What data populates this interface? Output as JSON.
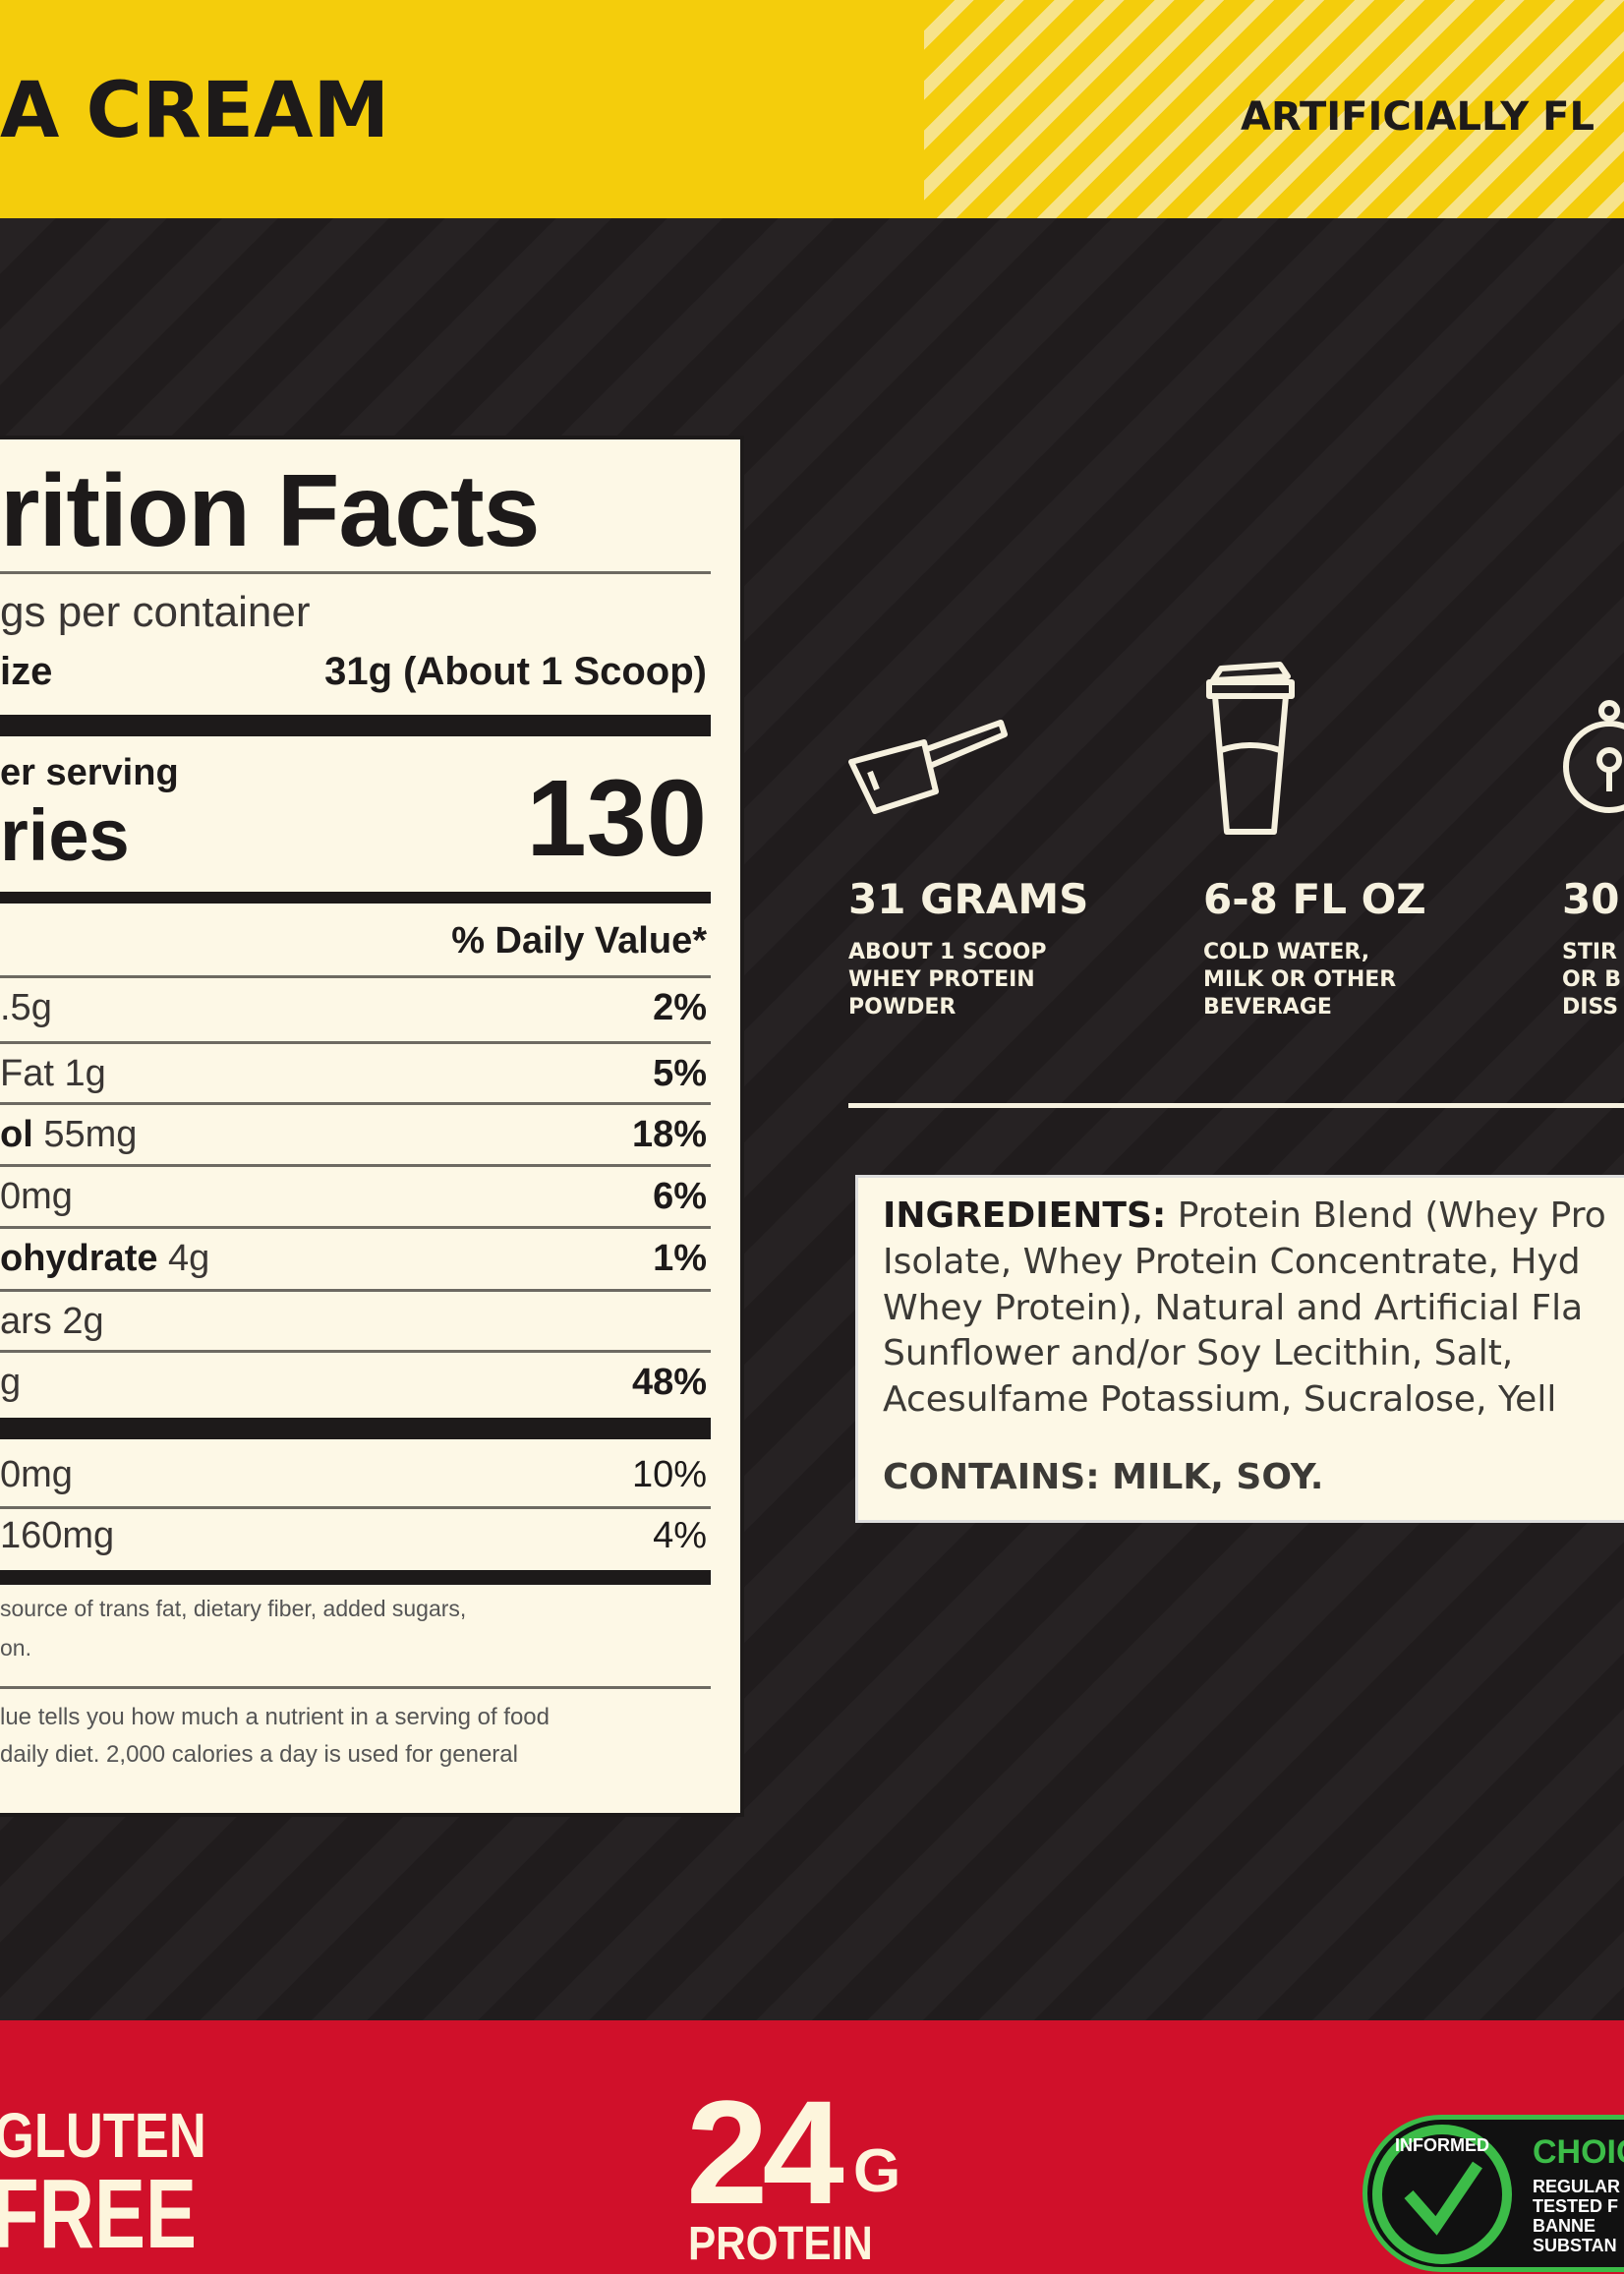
{
  "header": {
    "flavor_fragment": "A CREAM",
    "flavor_note_fragment": "ARTIFICIALLY FL",
    "colors": {
      "yellow": "#f4cd0c",
      "dark": "#242021",
      "red": "#d0102a",
      "cream": "#fdf8e6"
    }
  },
  "nutrition": {
    "title_fragment": "rition Facts",
    "servings_fragment": "gs per container",
    "serving_size_label_fragment": "ize",
    "serving_size_value": "31g (About 1 Scoop)",
    "amount_per_serving_fragment": "er serving",
    "calories_label_fragment": "ries",
    "calories_value": "130",
    "daily_value_header": "% Daily Value*",
    "rows": [
      {
        "bold": "",
        "text": ".5g",
        "dv": "2%"
      },
      {
        "bold": "",
        "text": "Fat 1g",
        "dv": "5%"
      },
      {
        "bold": "ol",
        "text": " 55mg",
        "dv": "18%"
      },
      {
        "bold": "",
        "text": "0mg",
        "dv": "6%"
      },
      {
        "bold": "ohydrate",
        "text": " 4g",
        "dv": "1%"
      },
      {
        "bold": "",
        "text": "ars 2g",
        "dv": ""
      },
      {
        "bold": "",
        "text": "g",
        "dv": "48%"
      }
    ],
    "minerals": [
      {
        "text": "0mg",
        "dv": "10%"
      },
      {
        "text": "160mg",
        "dv": "4%"
      }
    ],
    "footnote1_line1": "source of trans fat, dietary fiber, added sugars,",
    "footnote1_line2": "on.",
    "footnote2_line1": "lue tells you how much a nutrient in a serving of food",
    "footnote2_line2": "daily diet. 2,000 calories a day is used for general"
  },
  "directions": [
    {
      "icon": "scoop-icon",
      "title": "31 GRAMS",
      "lines": [
        "ABOUT 1 SCOOP",
        "WHEY PROTEIN",
        "POWDER"
      ]
    },
    {
      "icon": "shaker-icon",
      "title": "6-8 FL OZ",
      "lines": [
        "COLD WATER,",
        "MILK OR OTHER",
        "BEVERAGE"
      ]
    },
    {
      "icon": "stopwatch-icon",
      "title": "30",
      "lines": [
        "STIR",
        "OR B",
        "DISS"
      ]
    }
  ],
  "ingredients": {
    "label": "INGREDIENTS:",
    "lines": [
      "Protein Blend (Whey Pro",
      "Isolate, Whey Protein Concentrate, Hyd",
      "Whey Protein), Natural and Artificial Fla",
      "Sunflower and/or Soy Lecithin, Salt,",
      "Acesulfame Potassium, Sucralose, Yell"
    ],
    "contains": "CONTAINS: MILK, SOY."
  },
  "badges": {
    "gluten1": "GLUTEN",
    "gluten2": "FREE",
    "protein_amount": "24",
    "protein_unit": "G",
    "protein_label": "PROTEIN",
    "informed_ring": "INFORMED",
    "informed_choice": "CHOIC",
    "informed_lines": [
      "REGULAR",
      "TESTED F",
      "BANNE",
      "SUBSTAN"
    ]
  }
}
